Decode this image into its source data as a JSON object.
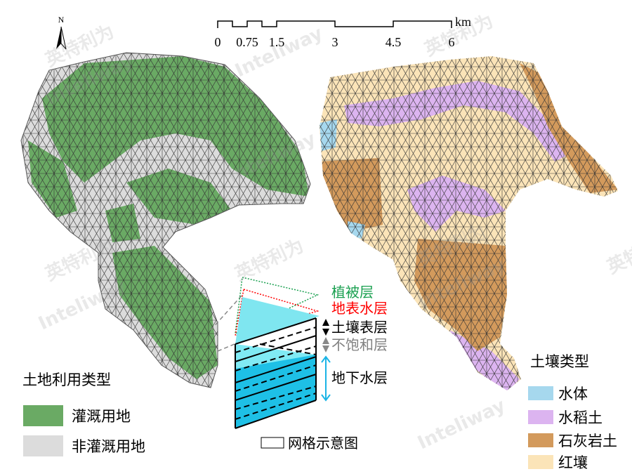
{
  "north_arrow": {
    "label": "N"
  },
  "scale_bar": {
    "unit": "km",
    "ticks": [
      "0",
      "0.75",
      "1.5",
      "3",
      "4.5",
      "6"
    ]
  },
  "land_use_legend": {
    "title": "土地利用类型",
    "items": [
      {
        "label": "灌溉用地",
        "color": "#6aaa64"
      },
      {
        "label": "非灌溉用地",
        "color": "#dcdcdc"
      }
    ]
  },
  "soil_legend": {
    "title": "土壤类型",
    "items": [
      {
        "label": "水体",
        "color": "#a6d8ee"
      },
      {
        "label": "水稻土",
        "color": "#dcb4f0"
      },
      {
        "label": "石灰岩土",
        "color": "#d39a5c"
      },
      {
        "label": "红壤",
        "color": "#fbe4b8"
      }
    ]
  },
  "grid_diagram": {
    "layers": [
      {
        "label": "植被层",
        "color": "#1aa050"
      },
      {
        "label": "地表水层",
        "color": "#ff0000"
      },
      {
        "label": "土壤表层",
        "color": "#000000"
      },
      {
        "label": "不饱和层",
        "color": "#808080"
      },
      {
        "label": "地下水层",
        "color": "#000000"
      }
    ],
    "legend_label": "网格示意图"
  },
  "watermark": {
    "cn": "英特利为",
    "en": "Inteliway"
  }
}
